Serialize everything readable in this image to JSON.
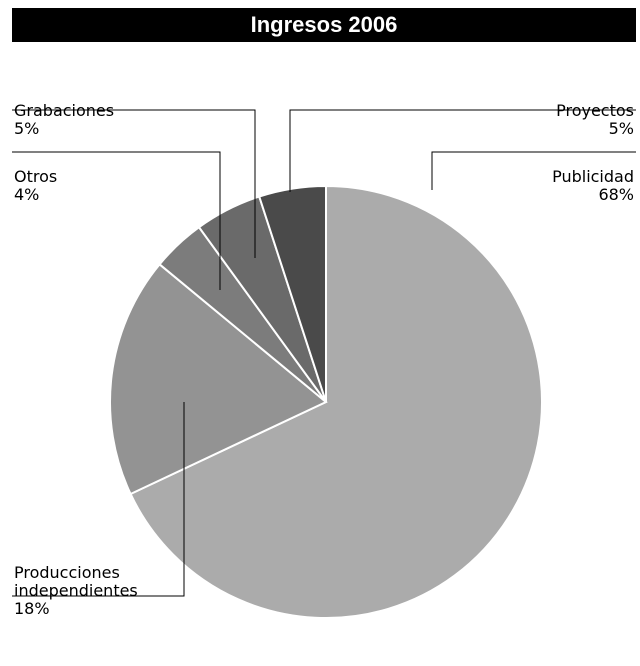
{
  "chart_data": {
    "type": "pie",
    "title": "Ingresos 2006",
    "slices": [
      {
        "name": "Publicidad",
        "label_lines": [
          "Publicidad"
        ],
        "value_text": "68%",
        "value": 68,
        "color": "#ababab"
      },
      {
        "name": "Producciones independientes",
        "label_lines": [
          "Producciones",
          "independientes"
        ],
        "value_text": "18%",
        "value": 18,
        "color": "#939393"
      },
      {
        "name": "Otros",
        "label_lines": [
          "Otros"
        ],
        "value_text": "4%",
        "value": 4,
        "color": "#7c7c7c"
      },
      {
        "name": "Grabaciones",
        "label_lines": [
          "Grabaciones"
        ],
        "value_text": "5%",
        "value": 5,
        "color": "#6a6a6a"
      },
      {
        "name": "Proyectos",
        "label_lines": [
          "Proyectos"
        ],
        "value_text": "5%",
        "value": 5,
        "color": "#4a4a4a"
      }
    ]
  }
}
